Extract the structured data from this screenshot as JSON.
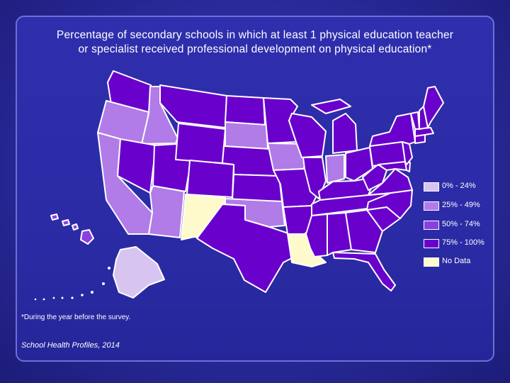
{
  "title_line1": "Percentage of secondary schools in which at least 1 physical education teacher",
  "title_line2": "or specialist received professional development on physical education*",
  "footnote": "*During the year before the survey.",
  "source": "School Health Profiles, 2014",
  "legend": [
    {
      "label": "0% - 24%",
      "color": "#d8c4f0"
    },
    {
      "label": "25% - 49%",
      "color": "#b17be8"
    },
    {
      "label": "50% - 74%",
      "color": "#8a3fe0"
    },
    {
      "label": "75% - 100%",
      "color": "#6a00cc"
    },
    {
      "label": "No Data",
      "color": "#fffacc"
    }
  ],
  "states": [
    {
      "id": "WA",
      "category": 3
    },
    {
      "id": "OR",
      "category": 1
    },
    {
      "id": "CA",
      "category": 1
    },
    {
      "id": "ID",
      "category": 1
    },
    {
      "id": "NV",
      "category": 3
    },
    {
      "id": "AZ",
      "category": 1
    },
    {
      "id": "MT",
      "category": 3
    },
    {
      "id": "WY",
      "category": 3
    },
    {
      "id": "UT",
      "category": 3
    },
    {
      "id": "CO",
      "category": 3
    },
    {
      "id": "NM",
      "category": 4
    },
    {
      "id": "ND",
      "category": 3
    },
    {
      "id": "SD",
      "category": 1
    },
    {
      "id": "NE",
      "category": 3
    },
    {
      "id": "KS",
      "category": 3
    },
    {
      "id": "OK",
      "category": 1
    },
    {
      "id": "TX",
      "category": 3
    },
    {
      "id": "MN",
      "category": 3
    },
    {
      "id": "IA",
      "category": 1
    },
    {
      "id": "MO",
      "category": 3
    },
    {
      "id": "AR",
      "category": 3
    },
    {
      "id": "LA",
      "category": 4
    },
    {
      "id": "WI",
      "category": 3
    },
    {
      "id": "IL",
      "category": 3
    },
    {
      "id": "MI",
      "category": 3
    },
    {
      "id": "IN",
      "category": 1
    },
    {
      "id": "OH",
      "category": 3
    },
    {
      "id": "KY",
      "category": 3
    },
    {
      "id": "TN",
      "category": 3
    },
    {
      "id": "MS",
      "category": 3
    },
    {
      "id": "AL",
      "category": 3
    },
    {
      "id": "GA",
      "category": 3
    },
    {
      "id": "FL",
      "category": 3
    },
    {
      "id": "SC",
      "category": 3
    },
    {
      "id": "NC",
      "category": 3
    },
    {
      "id": "VA",
      "category": 3
    },
    {
      "id": "WV",
      "category": 3
    },
    {
      "id": "PA",
      "category": 3
    },
    {
      "id": "NY",
      "category": 3
    },
    {
      "id": "ME",
      "category": 3
    },
    {
      "id": "VT",
      "category": 3
    },
    {
      "id": "NH",
      "category": 3
    },
    {
      "id": "MA",
      "category": 3
    },
    {
      "id": "CT",
      "category": 3
    },
    {
      "id": "NJ",
      "category": 3
    },
    {
      "id": "DE",
      "category": 3
    },
    {
      "id": "MD",
      "category": 3
    },
    {
      "id": "AK",
      "category": 0
    },
    {
      "id": "HI",
      "category": 2
    }
  ]
}
